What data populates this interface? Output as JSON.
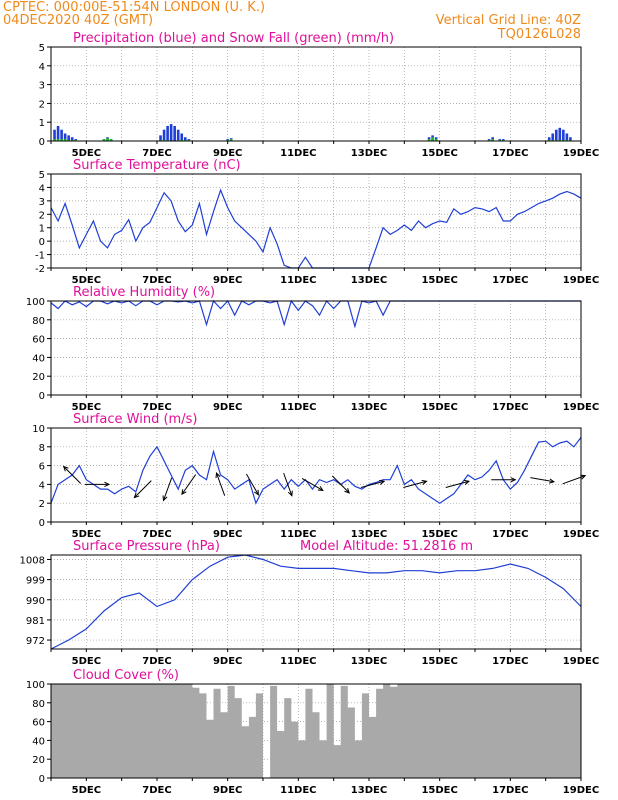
{
  "header": {
    "line1": "CPTEC:   000:00E-51:54N   LONDON (U. K.)",
    "line2": "04DEC2020 40Z (GMT)",
    "grid_note": "Vertical Grid Line: 40Z",
    "code": "TQ0126L028"
  },
  "colors": {
    "header": "#f08a1c",
    "title": "#e0109a",
    "precip": "#1f3fd6",
    "snow": "#22bb22",
    "line": "#1f3fd6",
    "cloud": "#a9a9a9",
    "arrow": "#000000"
  },
  "x_labels": [
    "5DEC",
    "7DEC",
    "9DEC",
    "11DEC",
    "13DEC",
    "15DEC",
    "17DEC",
    "19DEC"
  ],
  "chart_data": [
    {
      "type": "bar",
      "title": "Precipitation (blue) and Snow Fall (green) (mm/h)",
      "ylim": [
        0,
        5
      ],
      "yticks": [
        "0",
        "1",
        "2",
        "3",
        "4",
        "5"
      ],
      "x": [
        4.1,
        4.2,
        4.3,
        4.4,
        4.5,
        4.6,
        4.7,
        5.5,
        5.6,
        5.7,
        7.1,
        7.2,
        7.3,
        7.4,
        7.5,
        7.6,
        7.7,
        7.8,
        7.9,
        9.0,
        9.1,
        14.7,
        14.8,
        14.9,
        16.4,
        16.5,
        16.7,
        16.8,
        18.1,
        18.2,
        18.3,
        18.4,
        18.5,
        18.6,
        18.7
      ],
      "series": [
        {
          "name": "Precipitation",
          "values": [
            0.6,
            0.8,
            0.6,
            0.4,
            0.3,
            0.2,
            0.1,
            0.1,
            0.2,
            0.1,
            0.3,
            0.6,
            0.8,
            0.9,
            0.8,
            0.6,
            0.4,
            0.2,
            0.1,
            0.1,
            0.15,
            0.2,
            0.3,
            0.2,
            0.1,
            0.2,
            0.1,
            0.1,
            0.2,
            0.4,
            0.6,
            0.7,
            0.6,
            0.4,
            0.2
          ]
        },
        {
          "name": "Snow Fall",
          "values": [
            0.1,
            0.1,
            0.1,
            0.1,
            0.05,
            0.05,
            0.05,
            0.1,
            0.15,
            0.1,
            0.05,
            0.05,
            0.05,
            0,
            0,
            0.05,
            0.05,
            0.05,
            0.05,
            0.05,
            0.1,
            0.1,
            0.2,
            0.1,
            0.05,
            0.1,
            0.05,
            0.05,
            0.05,
            0.05,
            0.05,
            0.05,
            0.05,
            0.05,
            0.05
          ]
        }
      ]
    },
    {
      "type": "line",
      "title": "Surface Temperature (nC)",
      "ylim": [
        -2,
        5
      ],
      "yticks": [
        "-2",
        "-1",
        "0",
        "1",
        "2",
        "3",
        "4",
        "5"
      ],
      "x": [
        4,
        4.2,
        4.4,
        4.6,
        4.8,
        5.0,
        5.2,
        5.4,
        5.6,
        5.8,
        6.0,
        6.2,
        6.4,
        6.6,
        6.8,
        7.0,
        7.2,
        7.4,
        7.6,
        7.8,
        8.0,
        8.2,
        8.4,
        8.6,
        8.8,
        9.0,
        9.2,
        9.4,
        9.6,
        9.8,
        10.0,
        10.2,
        10.4,
        10.6,
        10.8,
        11.0,
        11.2,
        11.4,
        11.6,
        11.8,
        12.0,
        12.2,
        12.4,
        12.6,
        12.8,
        13.0,
        13.2,
        13.4,
        13.6,
        13.8,
        14.0,
        14.2,
        14.4,
        14.6,
        14.8,
        15.0,
        15.2,
        15.4,
        15.6,
        15.8,
        16.0,
        16.2,
        16.4,
        16.6,
        16.8,
        17.0,
        17.2,
        17.4,
        17.6,
        17.8,
        18.0,
        18.2,
        18.4,
        18.6,
        18.8,
        19.0
      ],
      "values": [
        2.5,
        1.5,
        2.8,
        1.2,
        -0.5,
        0.5,
        1.5,
        0,
        -0.5,
        0.5,
        0.8,
        1.6,
        0,
        1.0,
        1.4,
        2.5,
        3.6,
        3.0,
        1.5,
        0.7,
        1.2,
        2.8,
        0.5,
        2.2,
        3.8,
        2.5,
        1.5,
        1.0,
        0.5,
        0,
        -0.8,
        1.0,
        -0.2,
        -1.8,
        -2.5,
        -2.5,
        -1.2,
        -2.5,
        -2.5,
        -2.5,
        -2.5,
        -2.5,
        -2.5,
        -2.5,
        -2.5,
        -2.5,
        -0.5,
        1.0,
        0.5,
        0.8,
        1.2,
        0.8,
        1.5,
        1.0,
        1.3,
        1.5,
        1.4,
        2.4,
        2.0,
        2.2,
        2.5,
        2.4,
        2.2,
        2.5,
        1.5,
        1.5,
        2.0,
        2.2,
        2.5,
        2.8,
        3.0,
        3.2,
        3.5,
        3.7,
        3.5,
        3.2
      ]
    },
    {
      "type": "line",
      "title": "Relative Humidity (%)",
      "ylim": [
        0,
        100
      ],
      "yticks": [
        "0",
        "20",
        "40",
        "60",
        "80",
        "100"
      ],
      "x": [
        4,
        4.2,
        4.4,
        4.6,
        4.8,
        5.0,
        5.2,
        5.4,
        5.6,
        5.8,
        6.0,
        6.2,
        6.4,
        6.6,
        6.8,
        7.0,
        7.2,
        7.4,
        7.6,
        7.8,
        8.0,
        8.2,
        8.4,
        8.6,
        8.8,
        9.0,
        9.2,
        9.4,
        9.6,
        9.8,
        10.0,
        10.2,
        10.4,
        10.6,
        10.8,
        11.0,
        11.2,
        11.4,
        11.6,
        11.8,
        12.0,
        12.2,
        12.4,
        12.6,
        12.8,
        13.0,
        13.2,
        13.4,
        13.6,
        13.8,
        14.0,
        14.5,
        15.0,
        15.5,
        16.0,
        16.5,
        17.0,
        17.5,
        18.0,
        18.5,
        19.0
      ],
      "values": [
        98,
        92,
        100,
        96,
        99,
        94,
        100,
        100,
        97,
        100,
        98,
        100,
        95,
        100,
        100,
        96,
        100,
        100,
        99,
        100,
        98,
        100,
        75,
        100,
        92,
        100,
        85,
        100,
        96,
        100,
        100,
        98,
        100,
        75,
        100,
        90,
        100,
        95,
        85,
        100,
        92,
        100,
        100,
        73,
        100,
        98,
        100,
        85,
        100,
        100,
        100,
        100,
        100,
        100,
        100,
        100,
        100,
        100,
        100,
        100,
        100
      ]
    },
    {
      "type": "line",
      "title": "Surface Wind (m/s)",
      "ylim": [
        0,
        10
      ],
      "yticks": [
        "0",
        "2",
        "4",
        "6",
        "8",
        "10"
      ],
      "x": [
        4,
        4.2,
        4.4,
        4.6,
        4.8,
        5.0,
        5.2,
        5.4,
        5.6,
        5.8,
        6.0,
        6.2,
        6.4,
        6.6,
        6.8,
        7.0,
        7.2,
        7.4,
        7.6,
        7.8,
        8.0,
        8.2,
        8.4,
        8.6,
        8.8,
        9.0,
        9.2,
        9.4,
        9.6,
        9.8,
        10.0,
        10.2,
        10.4,
        10.6,
        10.8,
        11.0,
        11.2,
        11.4,
        11.6,
        11.8,
        12.0,
        12.2,
        12.4,
        12.6,
        12.8,
        13.0,
        13.2,
        13.4,
        13.6,
        13.8,
        14.0,
        14.2,
        14.4,
        14.6,
        14.8,
        15.0,
        15.2,
        15.4,
        15.6,
        15.8,
        16.0,
        16.2,
        16.4,
        16.6,
        16.8,
        17.0,
        17.2,
        17.4,
        17.6,
        17.8,
        18.0,
        18.2,
        18.4,
        18.6,
        18.8,
        19.0
      ],
      "values": [
        2,
        4,
        4.5,
        5,
        6,
        4.5,
        4,
        3.5,
        3.5,
        3.0,
        3.5,
        3.8,
        3.2,
        5.5,
        7,
        8,
        6.5,
        5,
        3.5,
        5.5,
        6,
        5,
        4.5,
        7.5,
        5,
        4.5,
        3.5,
        4,
        4.5,
        2,
        3.5,
        4,
        4.5,
        3.5,
        4.5,
        3.8,
        4.5,
        3.5,
        4.5,
        4.2,
        4.5,
        4,
        4.5,
        3.8,
        3.5,
        4,
        4.2,
        4.5,
        4.5,
        6,
        4,
        4.5,
        3.5,
        3,
        2.5,
        2,
        2.5,
        3,
        4,
        5,
        4.5,
        4.8,
        5.5,
        6.5,
        4.5,
        3.5,
        4.2,
        5.5,
        7,
        8.5,
        8.6,
        8,
        8.4,
        8.6,
        8.0,
        9.0
      ],
      "arrows": [
        {
          "x": 4.6,
          "speed": 5,
          "dir_deg": 315
        },
        {
          "x": 5.3,
          "speed": 4,
          "dir_deg": 90
        },
        {
          "x": 6.6,
          "speed": 3.5,
          "dir_deg": 225
        },
        {
          "x": 7.3,
          "speed": 3.5,
          "dir_deg": 200
        },
        {
          "x": 7.9,
          "speed": 4,
          "dir_deg": 215
        },
        {
          "x": 8.8,
          "speed": 4,
          "dir_deg": 340
        },
        {
          "x": 9.7,
          "speed": 4,
          "dir_deg": 150
        },
        {
          "x": 10.7,
          "speed": 4,
          "dir_deg": 160
        },
        {
          "x": 11.4,
          "speed": 4,
          "dir_deg": 120
        },
        {
          "x": 12.2,
          "speed": 4,
          "dir_deg": 135
        },
        {
          "x": 13.1,
          "speed": 4,
          "dir_deg": 75
        },
        {
          "x": 14.3,
          "speed": 4,
          "dir_deg": 75
        },
        {
          "x": 15.5,
          "speed": 4,
          "dir_deg": 75
        },
        {
          "x": 16.8,
          "speed": 4.5,
          "dir_deg": 90
        },
        {
          "x": 17.9,
          "speed": 4.5,
          "dir_deg": 100
        },
        {
          "x": 18.8,
          "speed": 4.5,
          "dir_deg": 70
        }
      ]
    },
    {
      "type": "line",
      "title": "Surface Pressure (hPa)",
      "subtitle": "Model Altitude: 51.2816 m",
      "ylim": [
        968,
        1010
      ],
      "yticks": [
        "972",
        "981",
        "990",
        "999",
        "1008"
      ],
      "ytick_values": [
        972,
        981,
        990,
        999,
        1008
      ],
      "x": [
        4,
        4.5,
        5.0,
        5.5,
        6.0,
        6.5,
        7.0,
        7.5,
        8.0,
        8.5,
        9.0,
        9.5,
        10.0,
        10.5,
        11.0,
        11.5,
        12.0,
        12.5,
        13.0,
        13.5,
        14.0,
        14.5,
        15.0,
        15.5,
        16.0,
        16.5,
        17.0,
        17.5,
        18.0,
        18.5,
        19.0
      ],
      "values": [
        968,
        972,
        977,
        985,
        991,
        993,
        987,
        990,
        999,
        1005,
        1009,
        1010,
        1008,
        1005,
        1004,
        1004,
        1004,
        1003,
        1002,
        1002,
        1003,
        1003,
        1002,
        1003,
        1003,
        1004,
        1006,
        1004,
        1000,
        995,
        987
      ]
    },
    {
      "type": "area",
      "title": "Cloud Cover (%)",
      "ylim": [
        0,
        100
      ],
      "yticks": [
        "0",
        "20",
        "40",
        "60",
        "80",
        "100"
      ],
      "x": [
        4,
        4.5,
        5.0,
        5.5,
        6.0,
        6.5,
        7.0,
        7.5,
        8.0,
        8.2,
        8.4,
        8.6,
        8.8,
        9.0,
        9.2,
        9.4,
        9.6,
        9.8,
        10.0,
        10.2,
        10.4,
        10.6,
        10.8,
        11.0,
        11.2,
        11.4,
        11.6,
        11.8,
        12.0,
        12.2,
        12.4,
        12.6,
        12.8,
        13.0,
        13.2,
        13.4,
        13.6,
        13.8,
        14.0,
        14.5,
        15.0,
        15.5,
        16.0,
        16.5,
        17.0,
        17.5,
        18.0,
        18.5,
        19.0
      ],
      "values": [
        100,
        100,
        100,
        100,
        100,
        100,
        100,
        100,
        96,
        90,
        62,
        95,
        70,
        98,
        85,
        55,
        65,
        90,
        0,
        98,
        50,
        85,
        60,
        40,
        95,
        70,
        40,
        100,
        35,
        98,
        75,
        40,
        90,
        65,
        95,
        100,
        97,
        100,
        100,
        100,
        100,
        100,
        100,
        100,
        100,
        100,
        100,
        100,
        100
      ]
    }
  ]
}
